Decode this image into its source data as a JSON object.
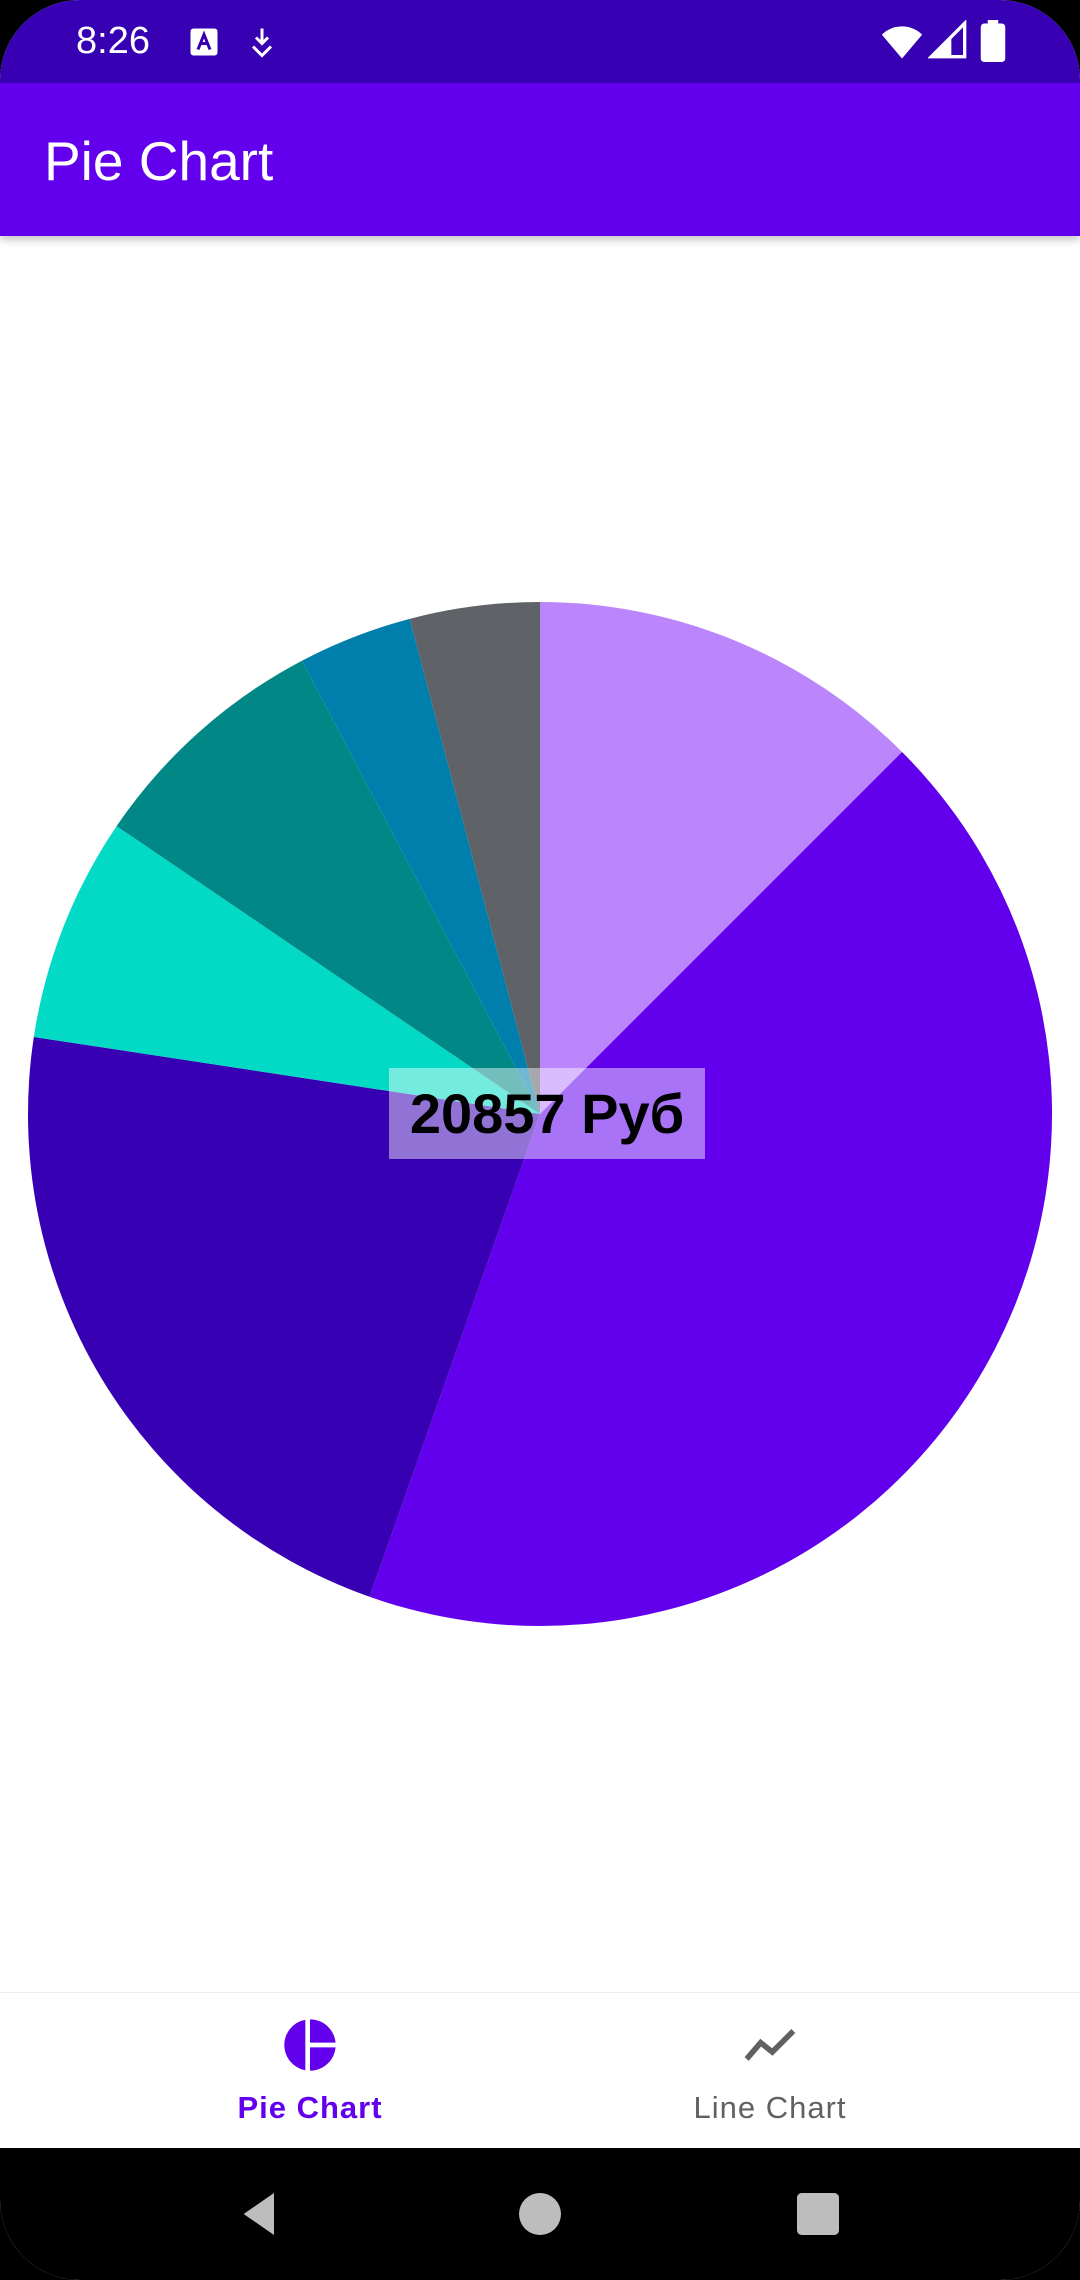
{
  "status_bar": {
    "time": "8:26",
    "icons": [
      "keyboard-a-icon",
      "download-icon",
      "wifi-icon",
      "signal-icon",
      "battery-icon"
    ]
  },
  "app_bar": {
    "title": "Pie Chart"
  },
  "chart_data": {
    "type": "pie",
    "total_label": "20857 Руб",
    "slices": [
      {
        "value": 2607,
        "color": "#bb86fc"
      },
      {
        "value": 8948,
        "color": "#6200ee"
      },
      {
        "value": 4589,
        "color": "#3700b3"
      },
      {
        "value": 1481,
        "color": "#03dac5"
      },
      {
        "value": 1627,
        "color": "#018786"
      },
      {
        "value": 751,
        "color": "#017fac"
      },
      {
        "value": 854,
        "color": "#5f6266"
      }
    ]
  },
  "bottom_nav": {
    "items": [
      {
        "label": "Pie Chart",
        "icon": "pie-chart-icon",
        "active": true
      },
      {
        "label": "Line Chart",
        "icon": "line-chart-icon",
        "active": false
      }
    ]
  },
  "colors": {
    "primary": "#6200ee",
    "primary_dark": "#3700b3",
    "inactive": "#616161"
  }
}
